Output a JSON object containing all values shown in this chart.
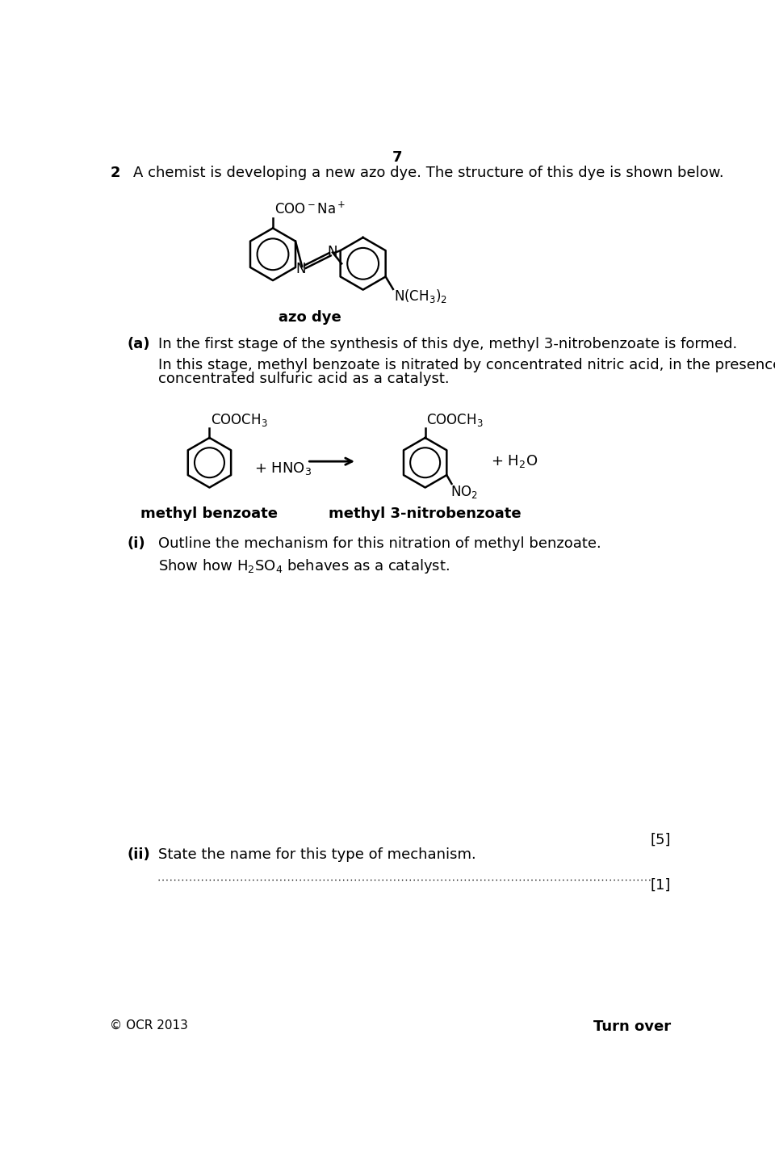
{
  "page_number": "7",
  "question_number": "2",
  "question_text": "A chemist is developing a new azo dye. The structure of this dye is shown below.",
  "azo_dye_label": "azo dye",
  "part_a_label": "(a)",
  "part_a_text": "In the first stage of the synthesis of this dye, methyl 3-nitrobenzoate is formed.",
  "part_a_desc_line1": "In this stage, methyl benzoate is nitrated by concentrated nitric acid, in the presence of",
  "part_a_desc_line2": "concentrated sulfuric acid as a catalyst.",
  "reactant_label": "methyl benzoate",
  "product_label": "methyl 3-nitrobenzoate",
  "part_i_label": "(i)",
  "part_i_text": "Outline the mechanism for this nitration of methyl benzoate.",
  "show_how_text": "Show how H$_2$SO$_4$ behaves as a catalyst.",
  "part_ii_label": "(ii)",
  "part_ii_text": "State the name for this type of mechanism.",
  "mark_5": "[5]",
  "mark_1": "[1]",
  "footer_left": "© OCR 2013",
  "footer_right": "Turn over",
  "bg_color": "#ffffff",
  "text_color": "#000000"
}
